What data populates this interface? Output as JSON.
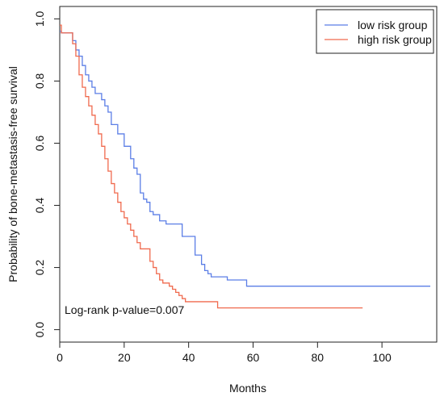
{
  "chart_data": {
    "type": "line",
    "xlabel": "Months",
    "ylabel": "Probability of bone-metastasis-free survival",
    "xlim": [
      0,
      117
    ],
    "ylim": [
      -0.04,
      1.04
    ],
    "x_ticks": [
      0,
      20,
      40,
      60,
      80,
      100
    ],
    "y_ticks": [
      0.0,
      0.2,
      0.4,
      0.6,
      0.8,
      1.0
    ],
    "x_tick_labels": [
      "0",
      "20",
      "40",
      "60",
      "80",
      "100"
    ],
    "y_tick_labels": [
      "0.0",
      "0.2",
      "0.4",
      "0.6",
      "0.8",
      "1.0"
    ],
    "grid": false,
    "legend_position": "top-right",
    "annotation": "Log-rank p-value=0.007",
    "series": [
      {
        "name": "low risk group",
        "color": "#5b7ee6",
        "step": true,
        "x": [
          0,
          0.5,
          4,
          5,
          6,
          7,
          8,
          9,
          10,
          11,
          13,
          14,
          15,
          16,
          18,
          20,
          22,
          23,
          24,
          25,
          26,
          27,
          28,
          29,
          31,
          33,
          38,
          42,
          44,
          45,
          46,
          47,
          52,
          58,
          115
        ],
        "y": [
          0.96,
          0.955,
          0.93,
          0.9,
          0.88,
          0.85,
          0.82,
          0.8,
          0.78,
          0.76,
          0.74,
          0.72,
          0.7,
          0.66,
          0.63,
          0.59,
          0.55,
          0.52,
          0.5,
          0.44,
          0.42,
          0.41,
          0.38,
          0.37,
          0.35,
          0.34,
          0.3,
          0.24,
          0.21,
          0.19,
          0.18,
          0.17,
          0.16,
          0.14,
          0.14
        ]
      },
      {
        "name": "high risk group",
        "color": "#f06a4e",
        "step": true,
        "x": [
          0,
          0.5,
          4,
          5,
          6,
          7,
          8,
          9,
          10,
          11,
          12,
          13,
          14,
          15,
          16,
          17,
          18,
          19,
          20,
          21,
          22,
          23,
          24,
          25,
          28,
          29,
          30,
          31,
          32,
          34,
          35,
          36,
          37,
          38,
          39,
          49,
          94
        ],
        "y": [
          0.98,
          0.955,
          0.92,
          0.88,
          0.82,
          0.78,
          0.75,
          0.72,
          0.69,
          0.66,
          0.63,
          0.59,
          0.55,
          0.51,
          0.47,
          0.44,
          0.41,
          0.38,
          0.36,
          0.34,
          0.32,
          0.3,
          0.28,
          0.26,
          0.22,
          0.2,
          0.18,
          0.16,
          0.15,
          0.14,
          0.13,
          0.12,
          0.11,
          0.1,
          0.09,
          0.07,
          0.07
        ]
      }
    ]
  }
}
